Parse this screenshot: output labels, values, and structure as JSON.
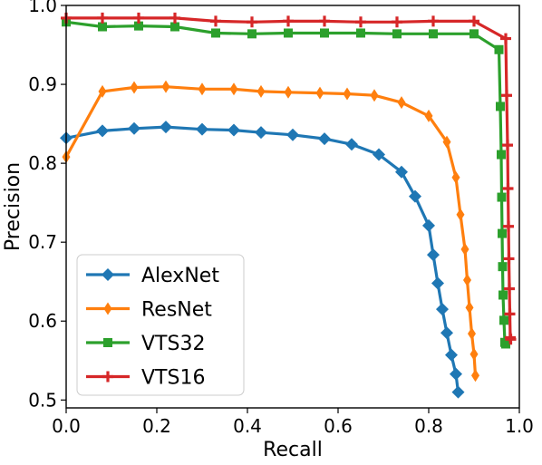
{
  "chart_data": {
    "type": "line",
    "title": "",
    "xlabel": "Recall",
    "ylabel": "Precision",
    "xlim": [
      0.0,
      1.0
    ],
    "ylim": [
      0.49,
      1.0
    ],
    "xticks": [
      "0.0",
      "0.2",
      "0.4",
      "0.6",
      "0.8",
      "1.0"
    ],
    "yticks": [
      "0.5",
      "0.6",
      "0.7",
      "0.8",
      "0.9",
      "1.0"
    ],
    "grid": false,
    "legend": {
      "position": "lower-left"
    },
    "series": [
      {
        "name": "AlexNet",
        "color": "#1f77b4",
        "marker": "diamond",
        "x": [
          0.0,
          0.08,
          0.15,
          0.22,
          0.3,
          0.37,
          0.43,
          0.5,
          0.57,
          0.63,
          0.69,
          0.74,
          0.77,
          0.8,
          0.81,
          0.82,
          0.83,
          0.84,
          0.85,
          0.86,
          0.865
        ],
        "y": [
          0.832,
          0.841,
          0.844,
          0.846,
          0.843,
          0.842,
          0.839,
          0.836,
          0.831,
          0.824,
          0.811,
          0.789,
          0.758,
          0.721,
          0.684,
          0.648,
          0.615,
          0.585,
          0.557,
          0.533,
          0.51
        ]
      },
      {
        "name": "ResNet",
        "color": "#ff7f0e",
        "marker": "thin-diamond",
        "x": [
          0.0,
          0.08,
          0.15,
          0.22,
          0.3,
          0.37,
          0.43,
          0.49,
          0.56,
          0.62,
          0.68,
          0.74,
          0.8,
          0.84,
          0.86,
          0.87,
          0.88,
          0.885,
          0.89,
          0.895,
          0.9,
          0.903
        ],
        "y": [
          0.808,
          0.891,
          0.896,
          0.897,
          0.894,
          0.894,
          0.891,
          0.89,
          0.889,
          0.888,
          0.886,
          0.877,
          0.86,
          0.827,
          0.782,
          0.735,
          0.691,
          0.652,
          0.617,
          0.584,
          0.558,
          0.531
        ]
      },
      {
        "name": "VTS32",
        "color": "#2ca02c",
        "marker": "square",
        "x": [
          0.0,
          0.08,
          0.16,
          0.24,
          0.33,
          0.41,
          0.49,
          0.57,
          0.65,
          0.73,
          0.81,
          0.9,
          0.955,
          0.958,
          0.96,
          0.961,
          0.962,
          0.963,
          0.964,
          0.966,
          0.968,
          0.97
        ],
        "y": [
          0.979,
          0.973,
          0.974,
          0.973,
          0.965,
          0.964,
          0.965,
          0.965,
          0.965,
          0.964,
          0.964,
          0.964,
          0.944,
          0.872,
          0.811,
          0.757,
          0.711,
          0.669,
          0.633,
          0.601,
          0.573,
          0.571
        ]
      },
      {
        "name": "VTS16",
        "color": "#d62728",
        "marker": "plus",
        "x": [
          0.0,
          0.08,
          0.16,
          0.24,
          0.33,
          0.41,
          0.49,
          0.57,
          0.65,
          0.73,
          0.81,
          0.9,
          0.97,
          0.972,
          0.974,
          0.975,
          0.976,
          0.977,
          0.978,
          0.979,
          0.98,
          0.981
        ],
        "y": [
          0.984,
          0.984,
          0.984,
          0.984,
          0.98,
          0.979,
          0.98,
          0.98,
          0.979,
          0.979,
          0.98,
          0.98,
          0.958,
          0.886,
          0.823,
          0.768,
          0.72,
          0.679,
          0.641,
          0.609,
          0.579,
          0.577
        ]
      }
    ]
  }
}
